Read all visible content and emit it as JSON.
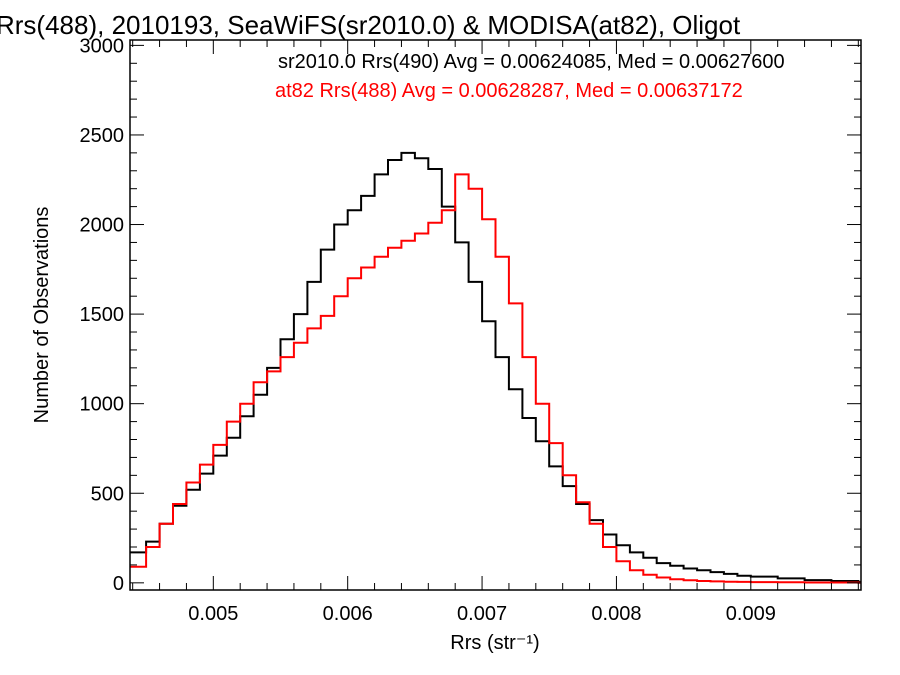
{
  "chart_data": {
    "type": "line",
    "title": "Rrs(488), 2010193, SeaWiFS(sr2010.0) & MODISA(at82), Oligot",
    "xlabel": "Rrs (str⁻¹)",
    "ylabel": "Number of Observations",
    "xlim": [
      0.00438,
      0.00982
    ],
    "ylim": [
      -40,
      3030
    ],
    "xticks": [
      "0.005",
      "0.006",
      "0.007",
      "0.008",
      "0.009"
    ],
    "yticks": [
      "0",
      "500",
      "1000",
      "1500",
      "2000",
      "2500",
      "3000"
    ],
    "grid": false,
    "legend_placement": "top-right",
    "series": [
      {
        "name": "sr2010.0 Rrs(490) Avg = 0.00624085, Med = 0.00627600",
        "color": "#000000",
        "step": "hist",
        "x": [
          0.00438,
          0.0045,
          0.0046,
          0.0047,
          0.0048,
          0.0049,
          0.005,
          0.0051,
          0.0052,
          0.0053,
          0.0054,
          0.0055,
          0.0056,
          0.0057,
          0.0058,
          0.0059,
          0.006,
          0.0061,
          0.0062,
          0.0063,
          0.0064,
          0.0065,
          0.0066,
          0.0067,
          0.0068,
          0.0069,
          0.007,
          0.0071,
          0.0072,
          0.0073,
          0.0074,
          0.0075,
          0.0076,
          0.0077,
          0.0078,
          0.0079,
          0.008,
          0.0081,
          0.0082,
          0.0083,
          0.0084,
          0.0085,
          0.0086,
          0.0087,
          0.0088,
          0.0089,
          0.009,
          0.0092,
          0.0094,
          0.0096,
          0.0098
        ],
        "y": [
          170,
          230,
          330,
          430,
          520,
          610,
          710,
          810,
          930,
          1050,
          1200,
          1360,
          1500,
          1680,
          1860,
          2000,
          2080,
          2160,
          2280,
          2360,
          2400,
          2370,
          2310,
          2100,
          1900,
          1680,
          1460,
          1260,
          1080,
          920,
          790,
          650,
          540,
          440,
          350,
          270,
          210,
          170,
          140,
          110,
          95,
          80,
          70,
          60,
          50,
          40,
          35,
          25,
          15,
          10,
          5
        ]
      },
      {
        "name": "at82 Rrs(488) Avg = 0.00628287, Med = 0.00637172",
        "color": "#ff0000",
        "step": "hist",
        "x": [
          0.00438,
          0.0045,
          0.0046,
          0.0047,
          0.0048,
          0.0049,
          0.005,
          0.0051,
          0.0052,
          0.0053,
          0.0054,
          0.0055,
          0.0056,
          0.0057,
          0.0058,
          0.0059,
          0.006,
          0.0061,
          0.0062,
          0.0063,
          0.0064,
          0.0065,
          0.0066,
          0.0067,
          0.0068,
          0.0069,
          0.007,
          0.0071,
          0.0072,
          0.0073,
          0.0074,
          0.0075,
          0.0076,
          0.0077,
          0.0078,
          0.0079,
          0.008,
          0.0081,
          0.0082,
          0.0083,
          0.0084,
          0.0085,
          0.0086,
          0.0087,
          0.0088,
          0.0089,
          0.009,
          0.0092,
          0.0094,
          0.0096,
          0.0098
        ],
        "y": [
          90,
          200,
          330,
          440,
          560,
          660,
          770,
          900,
          1000,
          1120,
          1180,
          1260,
          1340,
          1420,
          1490,
          1600,
          1700,
          1760,
          1820,
          1870,
          1910,
          1950,
          2010,
          2080,
          2280,
          2200,
          2030,
          1820,
          1560,
          1260,
          1000,
          780,
          600,
          450,
          330,
          200,
          120,
          70,
          45,
          30,
          20,
          14,
          10,
          8,
          6,
          5,
          4,
          3,
          2,
          2,
          1
        ]
      }
    ]
  }
}
